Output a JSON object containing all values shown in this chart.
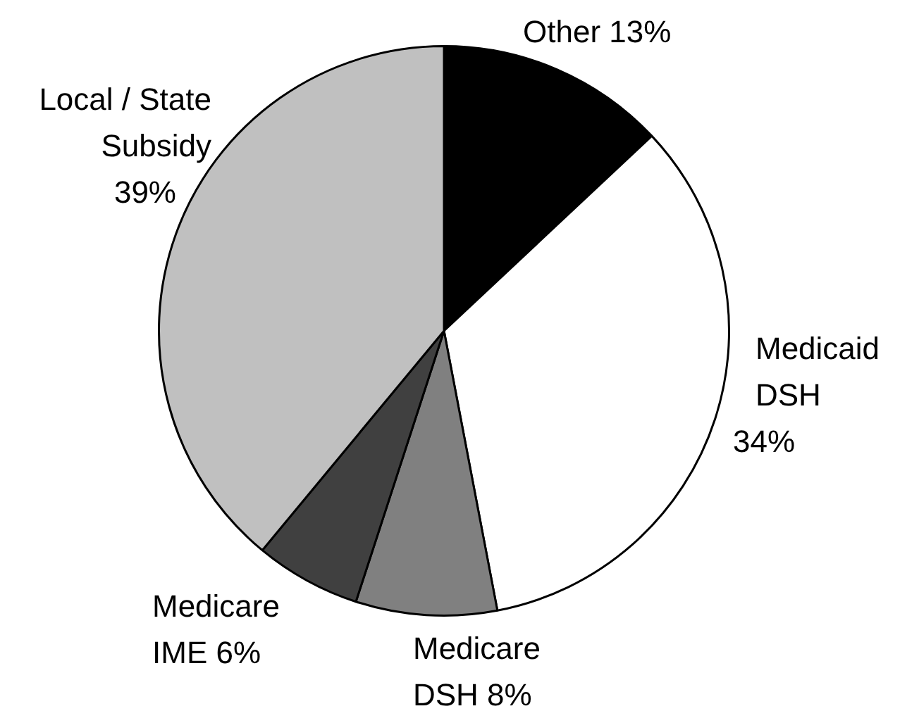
{
  "chart_data": {
    "type": "pie",
    "categories": [
      "Other",
      "Medicaid DSH",
      "Medicare DSH",
      "Medicare IME",
      "Local / State Subsidy"
    ],
    "values": [
      13,
      34,
      8,
      6,
      39
    ],
    "value_labels": [
      "13%",
      "34%",
      "8%",
      "6%",
      "39%"
    ],
    "colors": [
      "#000000",
      "#ffffff",
      "#808080",
      "#404040",
      "#c0c0c0"
    ],
    "legend": false
  }
}
